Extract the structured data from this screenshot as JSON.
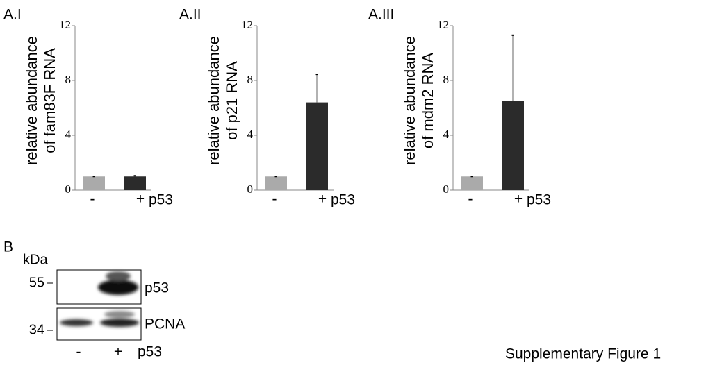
{
  "chart_data": [
    {
      "type": "bar",
      "panel": "A.I",
      "ylabel": [
        "relative abundance",
        "of fam83F RNA"
      ],
      "categories": [
        "-",
        "+"
      ],
      "xlabel": "p53",
      "values": [
        1,
        1
      ],
      "errors": [
        0,
        0.05
      ],
      "colors": [
        "#aaaaaa",
        "#2b2b2b"
      ],
      "ylim": [
        0,
        12
      ],
      "yticks": [
        0,
        4,
        8,
        12
      ]
    },
    {
      "type": "bar",
      "panel": "A.II",
      "ylabel": [
        "relative abundance",
        "of p21 RNA"
      ],
      "categories": [
        "-",
        "+"
      ],
      "xlabel": "p53",
      "values": [
        1,
        6.4
      ],
      "errors": [
        0,
        2.05
      ],
      "colors": [
        "#aaaaaa",
        "#2b2b2b"
      ],
      "ylim": [
        0,
        12
      ],
      "yticks": [
        0,
        4,
        8,
        12
      ]
    },
    {
      "type": "bar",
      "panel": "A.III",
      "ylabel": [
        "relative abundance",
        "of mdm2 RNA"
      ],
      "categories": [
        "-",
        "+"
      ],
      "xlabel": "p53",
      "values": [
        1,
        6.5
      ],
      "errors": [
        0,
        4.8
      ],
      "colors": [
        "#aaaaaa",
        "#2b2b2b"
      ],
      "ylim": [
        0,
        12
      ],
      "yticks": [
        0,
        4,
        8,
        12
      ]
    }
  ],
  "blot": {
    "panel": "B",
    "unit": "kDa",
    "markers": [
      55,
      34
    ],
    "bands": [
      "p53",
      "PCNA"
    ],
    "lanes": [
      "-",
      "+"
    ],
    "lane_label": "p53"
  },
  "caption": "Supplementary Figure 1"
}
